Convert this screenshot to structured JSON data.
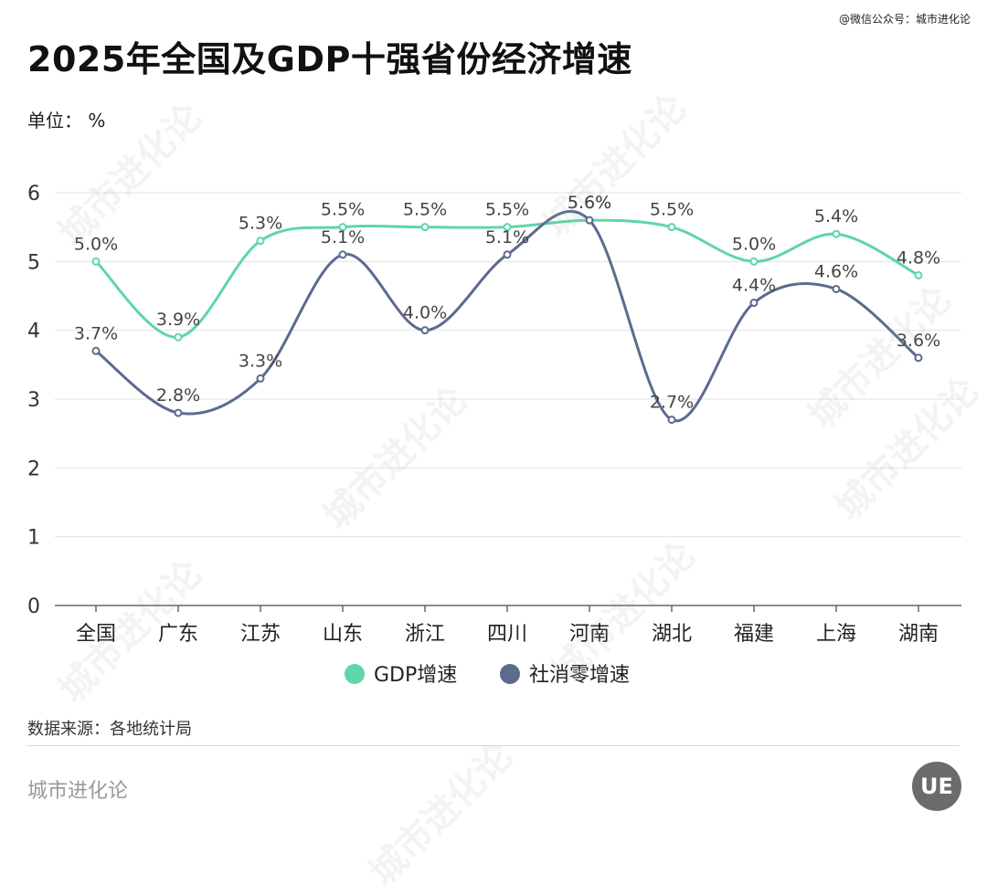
{
  "header": {
    "title": "2025年全国及GDP十强省份经济增速",
    "watermark": "@微信公众号：城市进化论",
    "unit_label": "单位：  %"
  },
  "chart_data": {
    "type": "line",
    "title": "2025年全国及GDP十强省份经济增速",
    "xlabel": "",
    "ylabel": "",
    "categories": [
      "全国",
      "广东",
      "江苏",
      "山东",
      "浙江",
      "四川",
      "河南",
      "湖北",
      "福建",
      "上海",
      "湖南"
    ],
    "ylim": [
      0,
      6
    ],
    "yticks": [
      0,
      1,
      2,
      3,
      4,
      5,
      6
    ],
    "grid": true,
    "smooth": true,
    "legend_position": "bottom-center",
    "series": [
      {
        "name": "GDP增速",
        "color": "#5fd6a5",
        "values": [
          5.0,
          3.9,
          5.3,
          5.5,
          5.5,
          5.5,
          5.6,
          5.5,
          5.0,
          5.4,
          4.8
        ],
        "labels": [
          "5.0%",
          "3.9%",
          "5.3%",
          "5.5%",
          "5.5%",
          "5.5%",
          "5.6%",
          "5.5%",
          "5.0%",
          "5.4%",
          "4.8%"
        ]
      },
      {
        "name": "社消零增速",
        "color": "#5b6b8e",
        "values": [
          3.7,
          2.8,
          3.3,
          5.1,
          4.0,
          5.1,
          5.6,
          2.7,
          4.4,
          4.6,
          3.6
        ],
        "labels": [
          "3.7%",
          "2.8%",
          "3.3%",
          "5.1%",
          "4.0%",
          "5.1%",
          "5.6%",
          "2.7%",
          "4.4%",
          "4.6%",
          "3.6%"
        ]
      }
    ]
  },
  "footer": {
    "source": "数据来源：各地统计局",
    "brand": "城市进化论",
    "logo_text": "UE"
  },
  "bg_watermark": "城市进化论"
}
